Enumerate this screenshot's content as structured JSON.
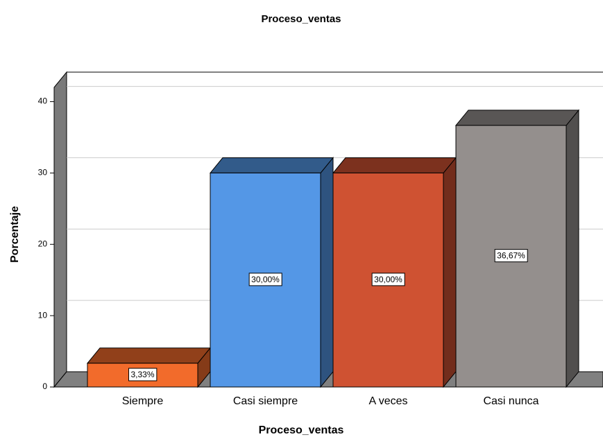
{
  "chart_data": {
    "type": "bar3d",
    "title": "Proceso_ventas",
    "x_label": "Proceso_ventas",
    "y_label": "Porcentaje",
    "categories": [
      "Siempre",
      "Casi siempre",
      "A veces",
      "Casi nunca"
    ],
    "values": [
      3.33,
      30,
      30,
      36.67
    ],
    "value_labels": [
      "3,33%",
      "30,00%",
      "30,00%",
      "36,67%"
    ],
    "colors": [
      "#f26b2b",
      "#5497e6",
      "#cf5232",
      "#948f8d"
    ],
    "ylim": [
      0,
      42
    ],
    "yticks": [
      0,
      10,
      20,
      30,
      40
    ],
    "grid": true
  }
}
